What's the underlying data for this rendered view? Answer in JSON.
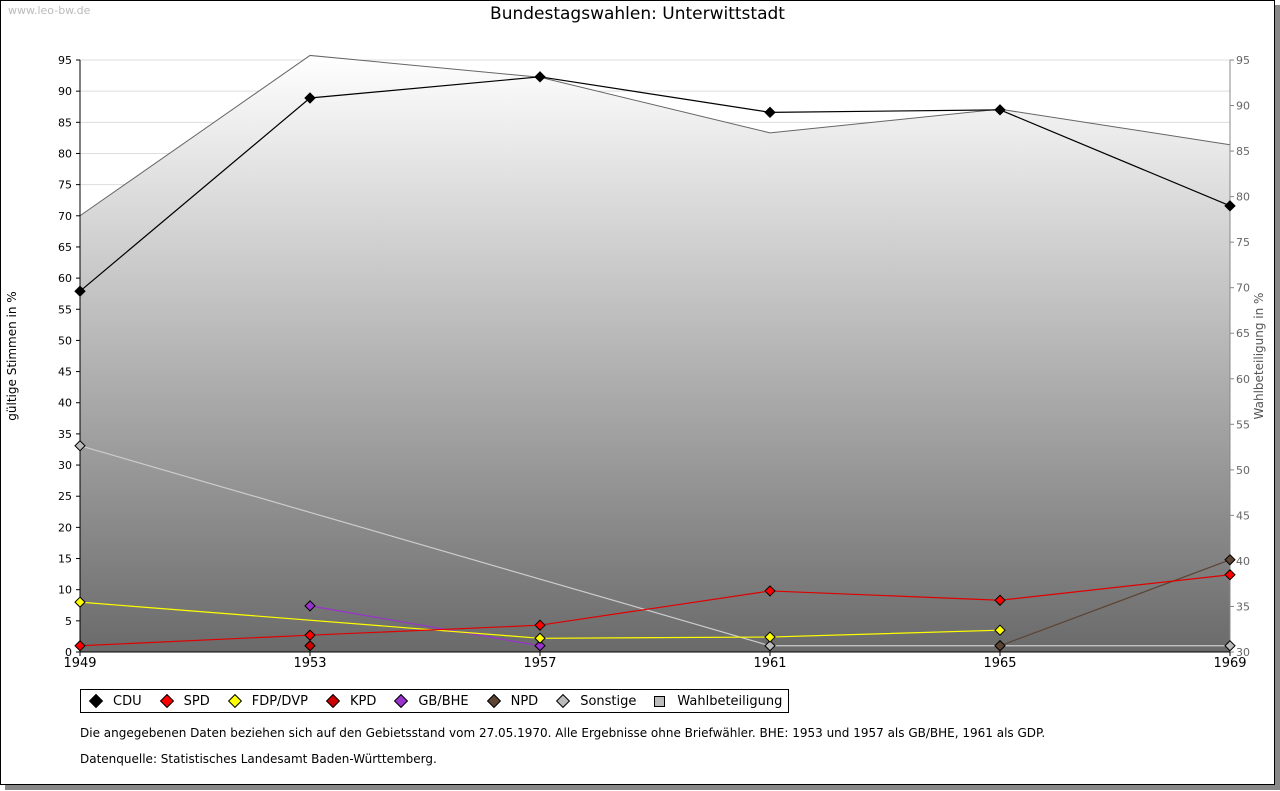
{
  "watermark": "www.leo-bw.de",
  "chart_data": {
    "type": "line",
    "title": "Bundestagswahlen: Unterwittstadt",
    "ylabel": "gültige Stimmen in %",
    "y2label": "Wahlbeteiligung in %",
    "x": [
      "1949",
      "1953",
      "1957",
      "1961",
      "1965",
      "1969"
    ],
    "ylim": [
      0,
      95
    ],
    "y2lim": [
      30,
      95
    ],
    "yticks": [
      0,
      5,
      10,
      15,
      20,
      25,
      30,
      35,
      40,
      45,
      50,
      55,
      60,
      65,
      70,
      75,
      80,
      85,
      90,
      95
    ],
    "y2ticks": [
      30,
      35,
      40,
      45,
      50,
      55,
      60,
      65,
      70,
      75,
      80,
      85,
      90,
      95
    ],
    "series": [
      {
        "name": "CDU",
        "color": "#000000",
        "line": "#000000",
        "values": [
          57.9,
          88.9,
          92.3,
          86.6,
          87.0,
          71.6
        ]
      },
      {
        "name": "SPD",
        "color": "#ff0000",
        "line": "#e00000",
        "values": [
          1.0,
          2.7,
          4.3,
          9.8,
          8.3,
          12.4
        ]
      },
      {
        "name": "FDP/DVP",
        "color": "#ffff00",
        "line": "#ffff00",
        "values": [
          8.0,
          null,
          2.2,
          2.4,
          3.5,
          null
        ]
      },
      {
        "name": "KPD",
        "color": "#cc0000",
        "line": "#cc0000",
        "values": [
          null,
          1.0,
          null,
          null,
          null,
          null
        ]
      },
      {
        "name": "GB/BHE",
        "color": "#9933cc",
        "line": "#9933cc",
        "values": [
          null,
          7.4,
          1.0,
          null,
          null,
          null
        ]
      },
      {
        "name": "NPD",
        "color": "#5c4434",
        "line": "#5c4434",
        "values": [
          null,
          null,
          null,
          null,
          1.0,
          14.8
        ]
      },
      {
        "name": "Sonstige",
        "color": "#bbbbbb",
        "line": "#cccccc",
        "values": [
          33.1,
          null,
          null,
          1.0,
          1.0,
          1.0
        ]
      }
    ],
    "area": {
      "name": "Wahlbeteiligung",
      "axis": "right",
      "values": [
        77.9,
        95.5,
        93.1,
        87.0,
        89.6,
        85.7
      ]
    }
  },
  "notes": [
    "Die angegebenen Daten beziehen sich auf den Gebietsstand vom 27.05.1970. Alle Ergebnisse ohne Briefwähler. BHE: 1953 und 1957 als GB/BHE, 1961 als GDP.",
    "Datenquelle: Statistisches Landesamt Baden-Württemberg."
  ]
}
